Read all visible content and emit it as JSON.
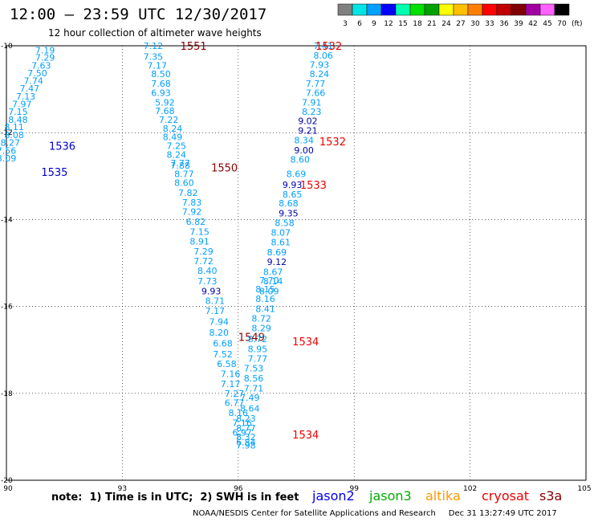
{
  "header": {
    "title": "12:00 – 23:59 UTC 12/30/2017",
    "subtitle": "12 hour collection of altimeter wave heights"
  },
  "color_scale": {
    "labels": [
      "3",
      "6",
      "9",
      "12",
      "15",
      "18",
      "21",
      "24",
      "27",
      "30",
      "33",
      "36",
      "39",
      "42",
      "45",
      "70"
    ],
    "unit": "(ft)",
    "colors": [
      "#808080",
      "#00e5e5",
      "#00a0ff",
      "#0000ff",
      "#00ffb0",
      "#00e000",
      "#00a000",
      "#ffff00",
      "#ffc000",
      "#ff8000",
      "#ff0000",
      "#c00000",
      "#800000",
      "#a000a0",
      "#ff60ff",
      "#000000"
    ]
  },
  "note": "note:  1) Time is in UTC;  2) SWH is in feet",
  "satellites": [
    {
      "label": "jason2",
      "color": "#0000ee"
    },
    {
      "label": "jason3",
      "color": "#00aa00"
    },
    {
      "label": "altika",
      "color": "#ff9900"
    },
    {
      "label": "cryosat",
      "color": "#ee0000"
    },
    {
      "label": "s3a",
      "color": "#880000"
    }
  ],
  "footer": "NOAA/NESDIS Center for Satellite Applications and Research     Dec 31 13:27:49 UTC 2017",
  "chart_data": {
    "type": "scatter",
    "x_ticks": [
      "90",
      "93",
      "96",
      "99",
      "102",
      "105"
    ],
    "y_ticks": [
      "-10",
      "-12",
      "-14",
      "-16",
      "-18",
      "-20"
    ],
    "xlim": [
      90,
      105
    ],
    "ylim": [
      -20,
      -10
    ],
    "grid": true,
    "tracks": [
      {
        "label": "1535",
        "label_color": "#0000cc",
        "label_at": [
          90.9,
          -12.9
        ],
        "points": [
          [
            91.0,
            -10.1,
            "7.19"
          ],
          [
            91.0,
            -10.27,
            "7.29"
          ],
          [
            90.9,
            -10.45,
            "7.63"
          ],
          [
            90.8,
            -10.63,
            "7.50"
          ],
          [
            90.7,
            -10.8,
            "7.74"
          ],
          [
            90.6,
            -10.98,
            "7.47"
          ],
          [
            90.5,
            -11.16,
            "7.13"
          ],
          [
            90.4,
            -11.34,
            "7.97"
          ],
          [
            90.3,
            -11.52,
            "7.15"
          ],
          [
            90.3,
            -11.7,
            "8.48"
          ],
          [
            90.2,
            -11.87,
            "8.11"
          ],
          [
            90.2,
            -12.05,
            "8.08"
          ],
          [
            90.1,
            -12.23,
            "8.27"
          ],
          [
            90.0,
            -12.41,
            "7.56"
          ],
          [
            90.0,
            -12.59,
            "8.09"
          ]
        ]
      },
      {
        "label": "1536",
        "label_color": "#0000cc",
        "label_at": [
          91.1,
          -12.3
        ],
        "points": []
      },
      {
        "label": "1551",
        "label_color": "#880000",
        "label_at": [
          94.5,
          -10.0
        ],
        "points": [
          [
            93.8,
            -10.0,
            "7.12"
          ],
          [
            93.8,
            -10.25,
            "7.35"
          ],
          [
            93.9,
            -10.45,
            "7.17"
          ],
          [
            94.0,
            -10.65,
            "8.50"
          ],
          [
            94.0,
            -10.87,
            "7.68"
          ],
          [
            94.0,
            -11.08,
            "6.93"
          ],
          [
            94.1,
            -11.3,
            "5.92"
          ],
          [
            94.1,
            -11.5,
            "7.68"
          ],
          [
            94.2,
            -11.7,
            "7.22"
          ],
          [
            94.3,
            -11.9,
            "8.24"
          ],
          [
            94.3,
            -12.1,
            "8.49"
          ],
          [
            94.4,
            -12.3,
            "7.25"
          ],
          [
            94.4,
            -12.5,
            "8.24"
          ],
          [
            94.5,
            -12.7,
            "7.77"
          ]
        ]
      },
      {
        "label": "1550",
        "label_color": "#880000",
        "label_at": [
          95.3,
          -12.8
        ],
        "points": [
          [
            94.5,
            -12.75,
            "7.88"
          ],
          [
            94.6,
            -12.95,
            "8.77"
          ],
          [
            94.6,
            -13.15,
            "8.60"
          ],
          [
            94.7,
            -13.38,
            "7.82"
          ],
          [
            94.8,
            -13.6,
            "7.83"
          ],
          [
            94.8,
            -13.82,
            "7.92"
          ],
          [
            94.9,
            -14.05,
            "6.82"
          ],
          [
            95.0,
            -14.28,
            "7.15"
          ],
          [
            95.0,
            -14.5,
            "8.91"
          ],
          [
            95.1,
            -14.73,
            "7.29"
          ],
          [
            95.1,
            -14.95,
            "7.72"
          ],
          [
            95.2,
            -15.18,
            "8.40"
          ],
          [
            95.2,
            -15.42,
            "7.73"
          ]
        ]
      },
      {
        "label": "1549",
        "label_color": "#880000",
        "label_at": [
          96.0,
          -16.7
        ],
        "points": [
          [
            95.3,
            -15.65,
            "9.93"
          ],
          [
            95.4,
            -15.87,
            "8.71"
          ],
          [
            95.4,
            -16.1,
            "7.17"
          ],
          [
            95.5,
            -16.35,
            "7.94"
          ],
          [
            95.5,
            -16.6,
            "8.20"
          ],
          [
            95.6,
            -16.85,
            "6.68"
          ],
          [
            95.6,
            -17.1,
            "7.52"
          ],
          [
            95.7,
            -17.32,
            "6.58"
          ],
          [
            95.8,
            -17.55,
            "7.16"
          ],
          [
            95.8,
            -17.78,
            "7.17"
          ],
          [
            95.9,
            -18.0,
            "7.27"
          ],
          [
            95.9,
            -18.22,
            "6.77"
          ],
          [
            96.0,
            -18.45,
            "8.16"
          ],
          [
            96.1,
            -18.68,
            "7.16"
          ],
          [
            96.1,
            -18.9,
            "6.97"
          ],
          [
            96.2,
            -19.12,
            "6.84"
          ]
        ]
      },
      {
        "label": "1534",
        "label_color": "#ee0000",
        "label_at": [
          97.4,
          -16.8
        ],
        "points": [
          [
            96.8,
            -15.4,
            "7.70"
          ],
          [
            96.7,
            -15.6,
            "8.15"
          ],
          [
            96.7,
            -15.82,
            "8.16"
          ],
          [
            96.7,
            -16.05,
            "8.41"
          ],
          [
            96.6,
            -16.28,
            "8.72"
          ],
          [
            96.6,
            -16.5,
            "8.29"
          ],
          [
            96.5,
            -16.75,
            "8.72"
          ],
          [
            96.5,
            -16.98,
            "8.95"
          ],
          [
            96.5,
            -17.2,
            "7.77"
          ],
          [
            96.4,
            -17.42,
            "7.53"
          ],
          [
            96.4,
            -17.65,
            "8.56"
          ],
          [
            96.4,
            -17.88,
            "7.71"
          ],
          [
            96.3,
            -18.1,
            "7.49"
          ],
          [
            96.3,
            -18.35,
            "8.64"
          ],
          [
            96.2,
            -18.58,
            "8.23"
          ],
          [
            96.2,
            -18.8,
            "8.77"
          ],
          [
            96.2,
            -19.0,
            "8.32"
          ],
          [
            96.2,
            -19.2,
            "7.98"
          ]
        ]
      },
      {
        "label": "1534",
        "label_color": "#ee0000",
        "label_at": [
          97.4,
          -18.95
        ],
        "points": []
      },
      {
        "label": "1533",
        "label_color": "#ee0000",
        "label_at": [
          97.6,
          -13.2
        ],
        "points": [
          [
            97.5,
            -12.95,
            "8.69"
          ],
          [
            97.4,
            -13.2,
            "9.93"
          ],
          [
            97.4,
            -13.42,
            "8.65"
          ],
          [
            97.3,
            -13.62,
            "8.68"
          ],
          [
            97.3,
            -13.85,
            "9.35"
          ],
          [
            97.2,
            -14.08,
            "8.58"
          ],
          [
            97.1,
            -14.3,
            "8.07"
          ],
          [
            97.1,
            -14.52,
            "8.61"
          ],
          [
            97.0,
            -14.75,
            "8.69"
          ],
          [
            97.0,
            -14.97,
            "9.12"
          ],
          [
            96.9,
            -15.2,
            "8.67"
          ],
          [
            96.9,
            -15.42,
            "8.14"
          ],
          [
            96.8,
            -15.65,
            "8.09"
          ]
        ]
      },
      {
        "label": "1532",
        "label_color": "#ee0000",
        "label_at": [
          98.0,
          -10.0
        ],
        "points": [
          [
            98.2,
            -10.0,
            "7.41"
          ],
          [
            98.2,
            -10.22,
            "8.06"
          ],
          [
            98.1,
            -10.43,
            "7.93"
          ],
          [
            98.1,
            -10.65,
            "8.24"
          ],
          [
            98.0,
            -10.87,
            "7.77"
          ],
          [
            98.0,
            -11.08,
            "7.66"
          ],
          [
            97.9,
            -11.3,
            "7.91"
          ],
          [
            97.9,
            -11.52,
            "8.23"
          ],
          [
            97.8,
            -11.73,
            "9.02"
          ],
          [
            97.8,
            -11.95,
            "9.21"
          ],
          [
            97.7,
            -12.17,
            "8.34"
          ],
          [
            97.7,
            -12.4,
            "9.00"
          ],
          [
            97.6,
            -12.62,
            "8.60"
          ]
        ]
      },
      {
        "label": "1532",
        "label_color": "#ee0000",
        "label_at": [
          98.1,
          -12.2
        ],
        "points": []
      }
    ]
  }
}
